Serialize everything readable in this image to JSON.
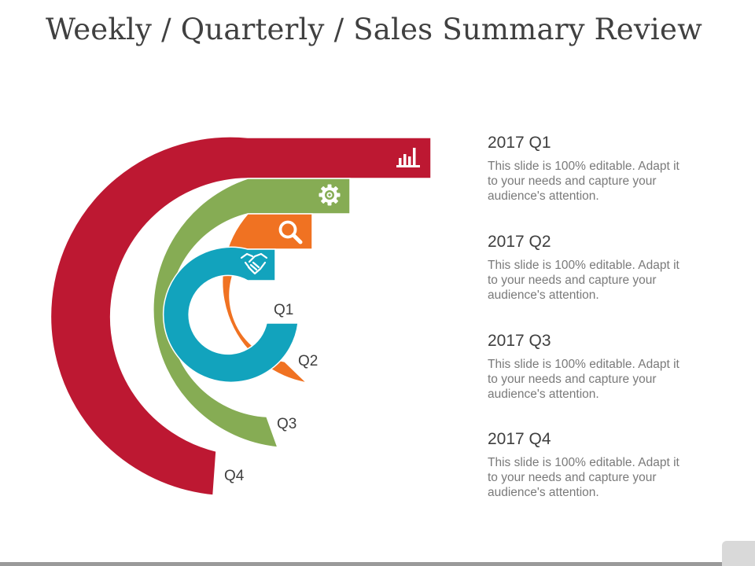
{
  "title": "Weekly / Quarterly / Sales Summary Review",
  "colors": {
    "q1": "#12a3bd",
    "q2": "#f07222",
    "q3": "#86ac54",
    "q4": "#bd1832",
    "icon": "#ffffff"
  },
  "rings": [
    {
      "id": "q1",
      "label": "Q1",
      "icon": "handshake-icon"
    },
    {
      "id": "q2",
      "label": "Q2",
      "icon": "magnifier-icon"
    },
    {
      "id": "q3",
      "label": "Q3",
      "icon": "gear-icon"
    },
    {
      "id": "q4",
      "label": "Q4",
      "icon": "bar-chart-icon"
    }
  ],
  "items": [
    {
      "heading": "2017 Q1",
      "body": "This slide is 100% editable. Adapt it to your needs and capture your audience's attention."
    },
    {
      "heading": "2017 Q2",
      "body": "This slide is 100% editable. Adapt it to your needs and capture your audience's attention."
    },
    {
      "heading": "2017 Q3",
      "body": "This slide is 100% editable. Adapt it to your needs and capture your audience's attention."
    },
    {
      "heading": "2017 Q4",
      "body": "This slide is 100% editable. Adapt it to your needs and capture your audience's attention."
    }
  ]
}
